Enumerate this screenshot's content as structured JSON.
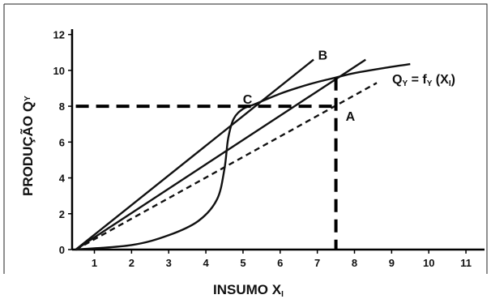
{
  "chart_data": {
    "type": "line",
    "xlabel_main": "INSUMO X",
    "xlabel_sub": "I",
    "ylabel_main": "PRODUÇÃO Q",
    "ylabel_sub": "Y",
    "function_label": {
      "q": "Q",
      "q_sub": "Y",
      "eq": " = f",
      "f_sub": "Y",
      "open": " (X",
      "x_sub": "I",
      "close": ")"
    },
    "x_ticks": [
      "1",
      "2",
      "3",
      "4",
      "5",
      "6",
      "7",
      "8",
      "9",
      "10",
      "11"
    ],
    "y_ticks": [
      "0",
      "2",
      "4",
      "6",
      "8",
      "10",
      "12"
    ],
    "xlim": [
      0.4,
      11.5
    ],
    "ylim": [
      0,
      12.3
    ],
    "grid": false,
    "points": [
      {
        "name": "C",
        "x": 5.3,
        "y": 8.0
      },
      {
        "name": "B",
        "x": 7.5,
        "y": 9.6
      },
      {
        "name": "A",
        "x": 7.5,
        "y": 8.1
      }
    ],
    "series": [
      {
        "style": "solid",
        "role": "production-curve",
        "x": [
          0.5,
          2.0,
          3.0,
          3.8,
          4.3,
          4.5,
          4.6,
          4.75,
          5.0,
          5.3,
          6.0,
          6.5,
          7.0,
          7.5,
          8.0,
          9.0,
          9.5
        ],
        "y": [
          0.0,
          0.25,
          0.8,
          1.6,
          2.8,
          4.5,
          6.2,
          7.3,
          7.85,
          8.1,
          8.7,
          9.05,
          9.35,
          9.6,
          9.85,
          10.2,
          10.35
        ]
      },
      {
        "style": "solid",
        "role": "tangent-line",
        "x": [
          0.5,
          6.9
        ],
        "y": [
          0.0,
          10.6
        ]
      },
      {
        "style": "solid",
        "role": "ray-through-B",
        "x": [
          0.5,
          8.3
        ],
        "y": [
          0.0,
          10.6
        ]
      },
      {
        "style": "dashed",
        "role": "dashed-ray",
        "x": [
          0.5,
          8.6
        ],
        "y": [
          0.0,
          9.3
        ]
      },
      {
        "style": "bold-dashed",
        "role": "horizontal-guide",
        "x": [
          0.5,
          7.5
        ],
        "y": [
          8.0,
          8.0
        ]
      },
      {
        "style": "bold-dashed",
        "role": "vertical-guide",
        "x": [
          7.5,
          7.5
        ],
        "y": [
          9.6,
          0.0
        ]
      }
    ]
  }
}
